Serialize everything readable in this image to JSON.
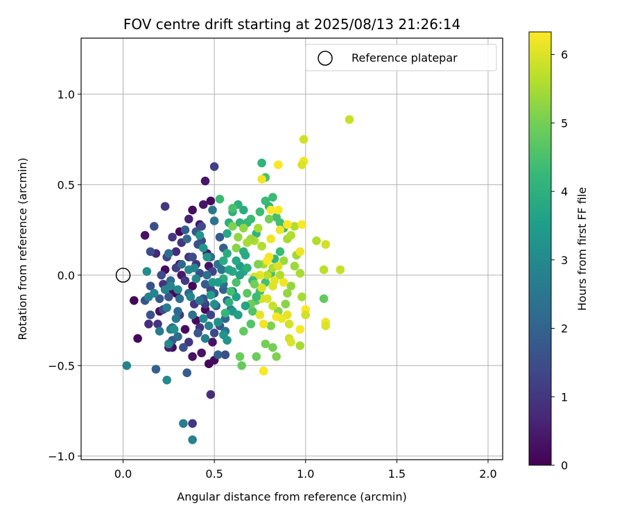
{
  "chart_data": {
    "type": "scatter",
    "title": "FOV centre drift starting at 2025/08/13 21:26:14",
    "xlabel": "Angular distance from reference (arcmin)",
    "ylabel": "Rotation from reference (arcmin)",
    "xlim": [
      -0.23,
      2.08
    ],
    "ylim": [
      -1.02,
      1.31
    ],
    "xticks": [
      0.0,
      0.5,
      1.0,
      1.5,
      2.0
    ],
    "xtick_labels": [
      "0.0",
      "0.5",
      "1.0",
      "1.5",
      "2.0"
    ],
    "yticks": [
      -1.0,
      -0.5,
      0.0,
      0.5,
      1.0
    ],
    "ytick_labels": [
      "−1.0",
      "−0.5",
      "0.0",
      "0.5",
      "1.0"
    ],
    "grid": true,
    "legend": {
      "placement": "top-right",
      "entries": [
        "Reference platepar"
      ]
    },
    "reference_point": {
      "label": "Reference platepar",
      "x": 0.0,
      "y": 0.0
    },
    "colorbar": {
      "label": "Hours from first FF file",
      "min": 0,
      "max": 6.33,
      "ticks": [
        0,
        1,
        2,
        3,
        4,
        5,
        6
      ],
      "tick_labels": [
        "0",
        "1",
        "2",
        "3",
        "4",
        "5",
        "6"
      ],
      "colormap": "viridis"
    },
    "points": [
      [
        0.06,
        -0.14,
        0.1
      ],
      [
        0.08,
        -0.35,
        0.1
      ],
      [
        0.12,
        0.22,
        0.3
      ],
      [
        0.2,
        -0.2,
        0.3
      ],
      [
        0.23,
        0.03,
        0.2
      ],
      [
        0.27,
        -0.08,
        0.2
      ],
      [
        0.29,
        -0.1,
        0.1
      ],
      [
        0.31,
        0.24,
        0.1
      ],
      [
        0.31,
        0.06,
        0.1
      ],
      [
        0.34,
        -0.3,
        0.2
      ],
      [
        0.38,
        -0.06,
        0.1
      ],
      [
        0.38,
        0.36,
        0.2
      ],
      [
        0.4,
        -0.25,
        0.2
      ],
      [
        0.42,
        0.28,
        0.3
      ],
      [
        0.44,
        0.39,
        0.4
      ],
      [
        0.45,
        0.52,
        0.4
      ],
      [
        0.45,
        -0.19,
        0.2
      ],
      [
        0.46,
        0.12,
        0.4
      ],
      [
        0.47,
        0.05,
        0.3
      ],
      [
        0.47,
        -0.49,
        0.1
      ],
      [
        0.48,
        0.41,
        0.2
      ],
      [
        0.49,
        -0.37,
        0.3
      ],
      [
        0.5,
        -0.47,
        0.2
      ],
      [
        0.43,
        -0.43,
        0.3
      ],
      [
        0.38,
        -0.45,
        0.3
      ],
      [
        0.27,
        -0.4,
        0.2
      ],
      [
        0.25,
        -0.4,
        0.5
      ],
      [
        0.32,
        0.0,
        0.4
      ],
      [
        0.48,
        -0.66,
        0.8
      ],
      [
        0.36,
        0.31,
        0.6
      ],
      [
        0.14,
        -0.27,
        0.8
      ],
      [
        0.19,
        -0.27,
        1.0
      ],
      [
        0.22,
        -0.05,
        0.9
      ],
      [
        0.29,
        0.13,
        0.8
      ],
      [
        0.18,
        0.12,
        0.7
      ],
      [
        0.23,
        0.38,
        1.0
      ],
      [
        0.27,
        0.21,
        1.0
      ],
      [
        0.32,
        0.18,
        1.0
      ],
      [
        0.36,
        0.1,
        1.0
      ],
      [
        0.4,
        0.06,
        0.9
      ],
      [
        0.34,
        -0.03,
        1.1
      ],
      [
        0.39,
        -0.16,
        1.0
      ],
      [
        0.31,
        -0.22,
        1.0
      ],
      [
        0.36,
        -0.37,
        1.0
      ],
      [
        0.42,
        -0.29,
        0.9
      ],
      [
        0.38,
        -0.82,
        1.0
      ],
      [
        0.5,
        0.6,
        1.2
      ],
      [
        0.43,
        0.27,
        1.4
      ],
      [
        0.43,
        0.19,
        1.3
      ],
      [
        0.49,
        0.02,
        1.3
      ],
      [
        0.48,
        -0.08,
        1.3
      ],
      [
        0.45,
        -0.16,
        1.2
      ],
      [
        0.48,
        -0.22,
        1.3
      ],
      [
        0.5,
        -0.32,
        1.4
      ],
      [
        0.56,
        -0.44,
        1.5
      ],
      [
        0.29,
        0.04,
        1.2
      ],
      [
        0.24,
        0.1,
        1.3
      ],
      [
        0.21,
        0.0,
        1.4
      ],
      [
        0.17,
        0.27,
        1.5
      ],
      [
        0.15,
        0.13,
        1.5
      ],
      [
        0.15,
        -0.06,
        1.6
      ],
      [
        0.12,
        -0.14,
        1.6
      ],
      [
        0.15,
        -0.22,
        1.6
      ],
      [
        0.2,
        -0.13,
        1.7
      ],
      [
        0.22,
        -0.19,
        1.4
      ],
      [
        0.25,
        -0.12,
        1.7
      ],
      [
        0.18,
        -0.52,
        1.9
      ],
      [
        0.27,
        -0.36,
        1.7
      ],
      [
        0.33,
        -0.4,
        1.6
      ],
      [
        0.35,
        -0.54,
        1.8
      ],
      [
        0.34,
        0.25,
        1.8
      ],
      [
        0.4,
        0.24,
        1.7
      ],
      [
        0.41,
        0.17,
        1.6
      ],
      [
        0.38,
        0.1,
        1.5
      ],
      [
        0.42,
        0.01,
        1.5
      ],
      [
        0.45,
        -0.05,
        1.8
      ],
      [
        0.44,
        -0.13,
        1.6
      ],
      [
        0.41,
        -0.32,
        1.7
      ],
      [
        0.5,
        -0.1,
        1.7
      ],
      [
        0.51,
        -0.17,
        1.9
      ],
      [
        0.53,
        0.21,
        1.8
      ],
      [
        0.55,
        0.15,
        1.9
      ],
      [
        0.53,
        -0.28,
        1.6
      ],
      [
        0.55,
        -0.08,
        1.9
      ],
      [
        0.52,
        -0.44,
        2.0
      ],
      [
        0.57,
        -0.14,
        2.0
      ],
      [
        0.56,
        -0.24,
        2.1
      ],
      [
        0.3,
        -0.2,
        2.1
      ],
      [
        0.27,
        -0.29,
        2.1
      ],
      [
        0.3,
        -0.34,
        2.2
      ],
      [
        0.31,
        -0.13,
        2.3
      ],
      [
        0.25,
        0.12,
        2.3
      ],
      [
        0.35,
        0.2,
        2.2
      ],
      [
        0.26,
        -0.03,
        2.2
      ],
      [
        0.32,
        0.06,
        2.1
      ],
      [
        0.36,
        -0.1,
        2.1
      ],
      [
        0.38,
        -0.22,
        2.4
      ],
      [
        0.42,
        -0.14,
        2.4
      ],
      [
        0.46,
        0.0,
        2.3
      ],
      [
        0.48,
        0.1,
        2.2
      ],
      [
        0.49,
        0.36,
        2.5
      ],
      [
        0.5,
        0.3,
        2.4
      ],
      [
        0.52,
        0.06,
        2.4
      ],
      [
        0.54,
        0.03,
        2.5
      ],
      [
        0.55,
        -0.05,
        2.3
      ],
      [
        0.56,
        -0.31,
        2.4
      ],
      [
        0.59,
        -0.19,
        2.5
      ],
      [
        0.6,
        -0.09,
        2.6
      ],
      [
        0.45,
        -0.35,
        2.7
      ],
      [
        0.37,
        -0.12,
        2.9
      ],
      [
        0.24,
        -0.18,
        2.7
      ],
      [
        0.2,
        -0.31,
        2.6
      ],
      [
        0.26,
        -0.3,
        2.6
      ],
      [
        0.29,
        -0.24,
        2.6
      ],
      [
        0.14,
        -0.12,
        2.8
      ],
      [
        0.17,
        -0.1,
        2.9
      ],
      [
        0.23,
        -0.08,
        2.8
      ],
      [
        0.26,
        -0.06,
        2.9
      ],
      [
        0.3,
        -0.08,
        3.0
      ],
      [
        0.36,
        0.03,
        3.0
      ],
      [
        0.39,
        0.04,
        2.9
      ],
      [
        0.4,
        -0.02,
        3.0
      ],
      [
        0.44,
        -0.24,
        3.0
      ],
      [
        0.47,
        -0.28,
        2.8
      ],
      [
        0.33,
        -0.82,
        2.7
      ],
      [
        0.38,
        -0.91,
        2.8
      ],
      [
        0.02,
        -0.5,
        2.8
      ],
      [
        0.24,
        -0.58,
        3.0
      ],
      [
        0.13,
        0.02,
        3.1
      ],
      [
        0.25,
        -0.38,
        3.0
      ],
      [
        0.28,
        -0.3,
        3.2
      ],
      [
        0.42,
        0.22,
        3.3
      ],
      [
        0.44,
        0.15,
        3.3
      ],
      [
        0.46,
        0.1,
        3.4
      ],
      [
        0.49,
        -0.04,
        3.4
      ],
      [
        0.5,
        -0.16,
        3.2
      ],
      [
        0.52,
        -0.26,
        3.2
      ],
      [
        0.55,
        -0.33,
        3.3
      ],
      [
        0.57,
        -0.36,
        3.3
      ],
      [
        0.6,
        -0.2,
        3.4
      ],
      [
        0.62,
        -0.12,
        3.6
      ],
      [
        0.63,
        -0.22,
        3.6
      ],
      [
        0.64,
        0.05,
        3.5
      ],
      [
        0.66,
        0.02,
        3.7
      ],
      [
        0.67,
        0.11,
        3.8
      ],
      [
        0.6,
        0.02,
        3.8
      ],
      [
        0.57,
        0.12,
        3.9
      ],
      [
        0.55,
        0.08,
        3.9
      ],
      [
        0.55,
        -0.02,
        3.9
      ],
      [
        0.57,
        0.23,
        3.8
      ],
      [
        0.58,
        0.29,
        4.0
      ],
      [
        0.6,
        0.35,
        4.0
      ],
      [
        0.64,
        0.29,
        4.1
      ],
      [
        0.63,
        0.39,
        4.0
      ],
      [
        0.66,
        0.36,
        3.9
      ],
      [
        0.68,
        0.29,
        4.2
      ],
      [
        0.7,
        0.31,
        4.3
      ],
      [
        0.73,
        0.23,
        4.1
      ],
      [
        0.75,
        0.35,
        4.3
      ],
      [
        0.78,
        0.41,
        4.3
      ],
      [
        0.8,
        0.38,
        4.2
      ],
      [
        0.82,
        0.43,
        4.3
      ],
      [
        0.84,
        0.32,
        4.4
      ],
      [
        0.86,
        0.29,
        4.4
      ],
      [
        0.88,
        0.26,
        4.2
      ],
      [
        0.86,
        0.13,
        4.3
      ],
      [
        0.83,
        0.09,
        4.2
      ],
      [
        0.81,
        0.01,
        4.5
      ],
      [
        0.78,
        -0.04,
        4.4
      ],
      [
        0.75,
        -0.09,
        4.4
      ],
      [
        0.73,
        -0.14,
        4.6
      ],
      [
        0.71,
        -0.2,
        4.6
      ],
      [
        0.7,
        -0.27,
        4.6
      ],
      [
        0.66,
        -0.31,
        4.8
      ],
      [
        0.64,
        -0.45,
        4.9
      ],
      [
        0.65,
        -0.5,
        4.8
      ],
      [
        0.73,
        -0.45,
        4.9
      ],
      [
        0.77,
        -0.53,
        5.0
      ],
      [
        0.78,
        -0.38,
        5.0
      ],
      [
        0.81,
        -0.28,
        5.1
      ],
      [
        0.82,
        -0.4,
        5.0
      ],
      [
        0.84,
        -0.45,
        5.1
      ],
      [
        0.85,
        -0.2,
        5.2
      ],
      [
        0.89,
        -0.16,
        5.2
      ],
      [
        0.9,
        -0.1,
        5.3
      ],
      [
        0.92,
        -0.06,
        5.3
      ],
      [
        0.94,
        0.05,
        5.4
      ],
      [
        0.95,
        0.11,
        5.4
      ],
      [
        0.97,
        0.01,
        5.5
      ],
      [
        0.98,
        -0.12,
        5.5
      ],
      [
        0.97,
        -0.39,
        5.5
      ],
      [
        0.88,
        0.08,
        5.4
      ],
      [
        0.9,
        0.2,
        5.5
      ],
      [
        0.92,
        0.22,
        5.6
      ],
      [
        0.94,
        0.27,
        5.6
      ],
      [
        0.86,
        0.0,
        5.6
      ],
      [
        0.82,
        0.04,
        5.6
      ],
      [
        0.79,
        0.0,
        5.7
      ],
      [
        0.77,
        0.06,
        5.5
      ],
      [
        0.76,
        0.16,
        5.6
      ],
      [
        0.74,
        0.26,
        5.5
      ],
      [
        0.72,
        0.19,
        5.6
      ],
      [
        0.7,
        0.2,
        5.4
      ],
      [
        0.68,
        0.18,
        5.5
      ],
      [
        0.66,
        0.26,
        5.3
      ],
      [
        0.63,
        0.21,
        5.3
      ],
      [
        0.62,
        0.15,
        5.2
      ],
      [
        0.6,
        0.27,
        5.1
      ],
      [
        0.76,
        0.62,
        4.1
      ],
      [
        0.78,
        0.54,
        4.5
      ],
      [
        0.8,
        0.31,
        5.0
      ],
      [
        1.06,
        0.19,
        5.6
      ],
      [
        1.1,
        0.03,
        5.7
      ],
      [
        1.11,
        0.17,
        5.9
      ],
      [
        1.19,
        0.03,
        5.8
      ],
      [
        1.1,
        -0.13,
        4.8
      ],
      [
        1.24,
        0.86,
        5.8
      ],
      [
        0.99,
        0.75,
        5.9
      ],
      [
        0.99,
        0.63,
        6.2
      ],
      [
        0.98,
        0.61,
        6.0
      ],
      [
        0.85,
        0.61,
        6.3
      ],
      [
        0.76,
        0.53,
        6.2
      ],
      [
        0.81,
        0.36,
        6.3
      ],
      [
        0.85,
        0.36,
        6.3
      ],
      [
        0.86,
        0.25,
        6.2
      ],
      [
        0.9,
        0.28,
        6.3
      ],
      [
        0.98,
        0.28,
        6.3
      ],
      [
        0.97,
        0.13,
        6.2
      ],
      [
        0.81,
        0.2,
        6.2
      ],
      [
        0.8,
        0.1,
        6.2
      ],
      [
        0.79,
        0.08,
        6.3
      ],
      [
        0.83,
        -0.03,
        6.1
      ],
      [
        0.85,
        0.05,
        6.0
      ],
      [
        0.88,
        -0.04,
        6.2
      ],
      [
        0.82,
        -0.06,
        6.0
      ],
      [
        0.75,
        0.0,
        6.1
      ],
      [
        0.72,
        -0.01,
        5.9
      ],
      [
        0.76,
        -0.07,
        6.0
      ],
      [
        0.76,
        -0.13,
        5.9
      ],
      [
        0.79,
        -0.13,
        6.0
      ],
      [
        0.82,
        -0.17,
        5.8
      ],
      [
        0.75,
        -0.22,
        6.1
      ],
      [
        0.77,
        -0.27,
        6.2
      ],
      [
        0.84,
        -0.23,
        6.3
      ],
      [
        0.87,
        -0.24,
        6.2
      ],
      [
        0.9,
        -0.22,
        6.1
      ],
      [
        0.91,
        -0.27,
        5.9
      ],
      [
        0.97,
        -0.3,
        6.3
      ],
      [
        1.0,
        -0.19,
        6.3
      ],
      [
        1.0,
        -0.22,
        5.9
      ],
      [
        1.11,
        -0.26,
        6.2
      ],
      [
        1.11,
        -0.28,
        6.0
      ],
      [
        0.91,
        -0.35,
        5.9
      ],
      [
        0.92,
        -0.37,
        6.0
      ],
      [
        0.77,
        -0.53,
        6.3
      ],
      [
        0.73,
        -0.12,
        4.3
      ],
      [
        0.71,
        -0.03,
        4.2
      ],
      [
        0.68,
        0.04,
        4.0
      ],
      [
        0.66,
        0.13,
        3.9
      ],
      [
        0.68,
        -0.1,
        4.7
      ],
      [
        0.7,
        -0.16,
        4.9
      ],
      [
        0.72,
        -0.05,
        5.0
      ],
      [
        0.74,
        0.06,
        5.1
      ],
      [
        0.62,
        -0.04,
        4.5
      ],
      [
        0.59,
        -0.09,
        4.4
      ],
      [
        0.58,
        -0.15,
        4.0
      ],
      [
        0.56,
        -0.21,
        4.2
      ],
      [
        0.53,
        0.42,
        4.3
      ],
      [
        0.6,
        0.37,
        4.5
      ],
      [
        0.62,
        0.08,
        3.8
      ],
      [
        0.67,
        -0.17,
        3.7
      ],
      [
        0.64,
        0.0,
        3.6
      ],
      [
        0.58,
        0.03,
        3.7
      ],
      [
        0.52,
        -0.04,
        3.5
      ],
      [
        0.48,
        -0.11,
        3.5
      ]
    ]
  }
}
